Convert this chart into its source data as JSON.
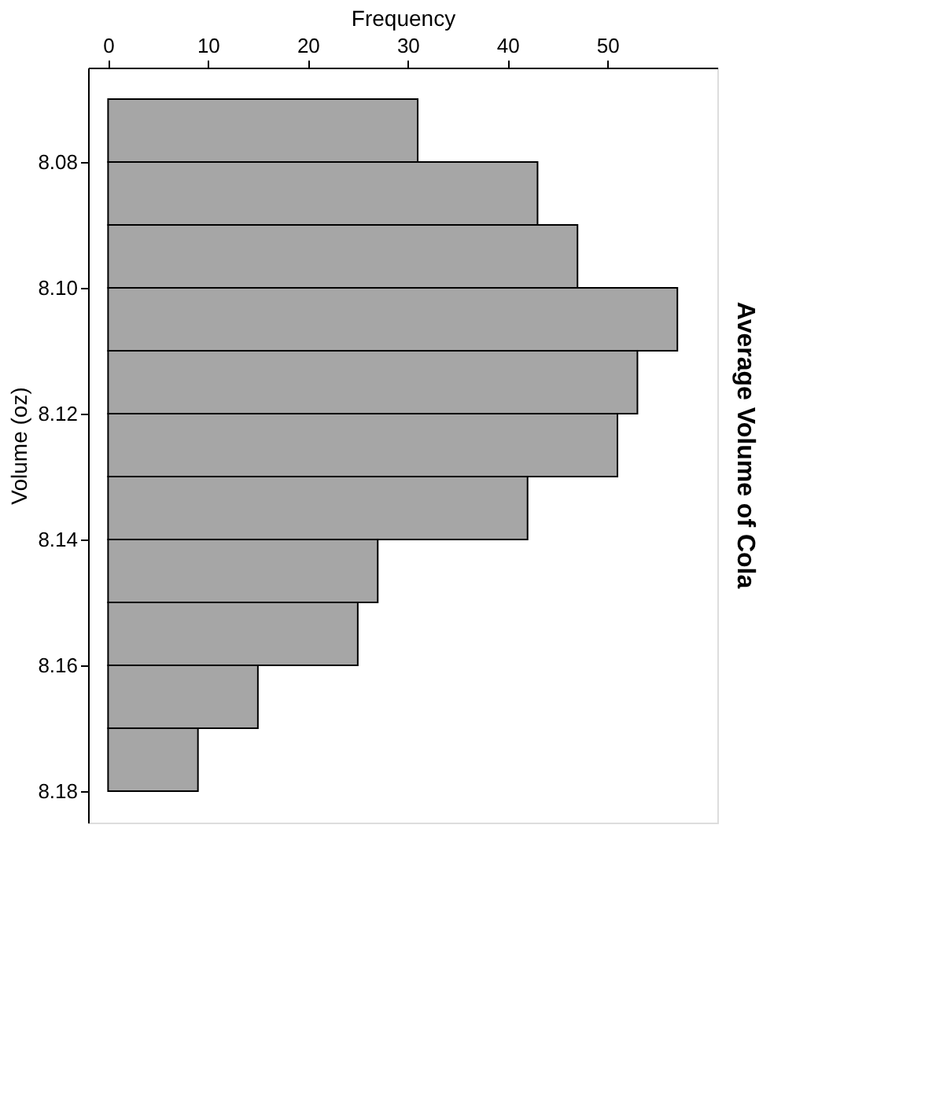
{
  "chart_data": {
    "type": "histogram",
    "title": "Average Volume of Cola",
    "xlabel": "Frequency",
    "ylabel": "Volume (oz)",
    "orientation": "horizontal",
    "bins": [
      8.07,
      8.08,
      8.09,
      8.1,
      8.11,
      8.12,
      8.13,
      8.14,
      8.15,
      8.16,
      8.17,
      8.18
    ],
    "values": [
      31,
      43,
      47,
      57,
      53,
      51,
      42,
      27,
      25,
      15,
      9
    ],
    "color": "#a6a6a6",
    "xlim": [
      -2,
      61
    ],
    "xticks": [
      0,
      10,
      20,
      30,
      40,
      50
    ],
    "ylim": [
      8.185,
      8.065
    ],
    "yticks": [
      8.08,
      {
        "value": 8.1,
        "label": "8.10"
      },
      8.12,
      8.14,
      8.16,
      8.18
    ]
  }
}
